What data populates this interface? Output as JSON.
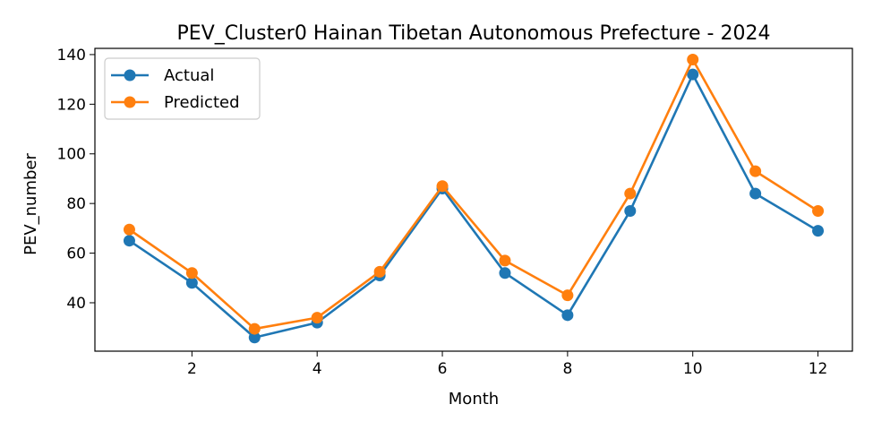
{
  "chart_data": {
    "type": "line",
    "title": "PEV_Cluster0 Hainan Tibetan Autonomous Prefecture - 2024",
    "xlabel": "Month",
    "ylabel": "PEV_number",
    "x": [
      1,
      2,
      3,
      4,
      5,
      6,
      7,
      8,
      9,
      10,
      11,
      12
    ],
    "xlim": [
      0.45,
      12.55
    ],
    "ylim": [
      20.5,
      142.5
    ],
    "xticks": [
      2,
      4,
      6,
      8,
      10,
      12
    ],
    "yticks": [
      40,
      60,
      80,
      100,
      120,
      140
    ],
    "grid": false,
    "legend_position": "upper-left",
    "series": [
      {
        "name": "Actual",
        "color": "#1f77b4",
        "marker": "circle",
        "values": [
          65,
          48,
          26,
          32,
          51,
          86,
          52,
          35,
          77,
          132,
          84,
          69
        ]
      },
      {
        "name": "Predicted",
        "color": "#ff7f0e",
        "marker": "circle",
        "values": [
          69.5,
          52,
          29.5,
          34,
          52.5,
          87,
          57,
          43,
          84,
          138,
          93,
          77
        ]
      }
    ]
  }
}
